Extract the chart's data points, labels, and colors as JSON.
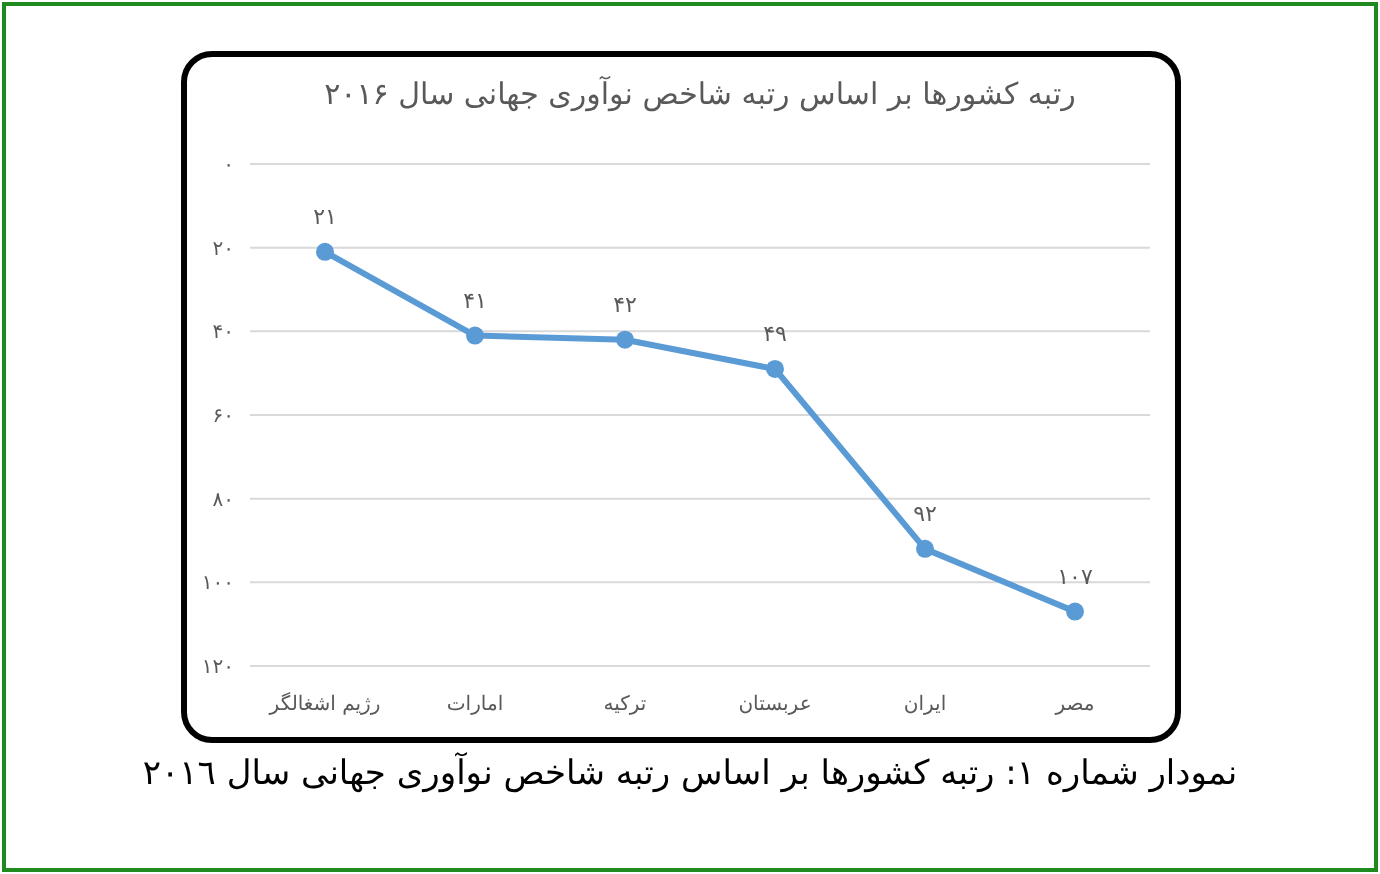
{
  "chart_data": {
    "type": "line",
    "title": "رتبه کشورها بر اساس رتبه شاخص نوآوری جهانی سال ۲۰۱۶",
    "categories": [
      "رژیم اشغالگر",
      "امارات",
      "ترکیه",
      "عربستان",
      "ایران",
      "مصر"
    ],
    "series": [
      {
        "color": "#5b9bd5",
        "values": [
          21,
          41,
          42,
          49,
          92,
          107
        ],
        "value_labels": [
          "۲۱",
          "۴۱",
          "۴۲",
          "۴۹",
          "۹۲",
          "۱۰۷"
        ]
      }
    ],
    "ylim": [
      120,
      0
    ],
    "yticks": [
      {
        "value": 0,
        "label": "۰"
      },
      {
        "value": 20,
        "label": "۲۰"
      },
      {
        "value": 40,
        "label": "۴۰"
      },
      {
        "value": 60,
        "label": "۶۰"
      },
      {
        "value": 80,
        "label": "۸۰"
      },
      {
        "value": 100,
        "label": "۱۰۰"
      },
      {
        "value": 120,
        "label": "۱۲۰"
      }
    ],
    "grid": "y",
    "marker": "circle",
    "line_style": "solid",
    "annotations": [
      "نمودار شماره ١: رتبه کشورها بر اساس رتبه شاخص نوآوری جهانی سال ٢٠١٦"
    ]
  }
}
